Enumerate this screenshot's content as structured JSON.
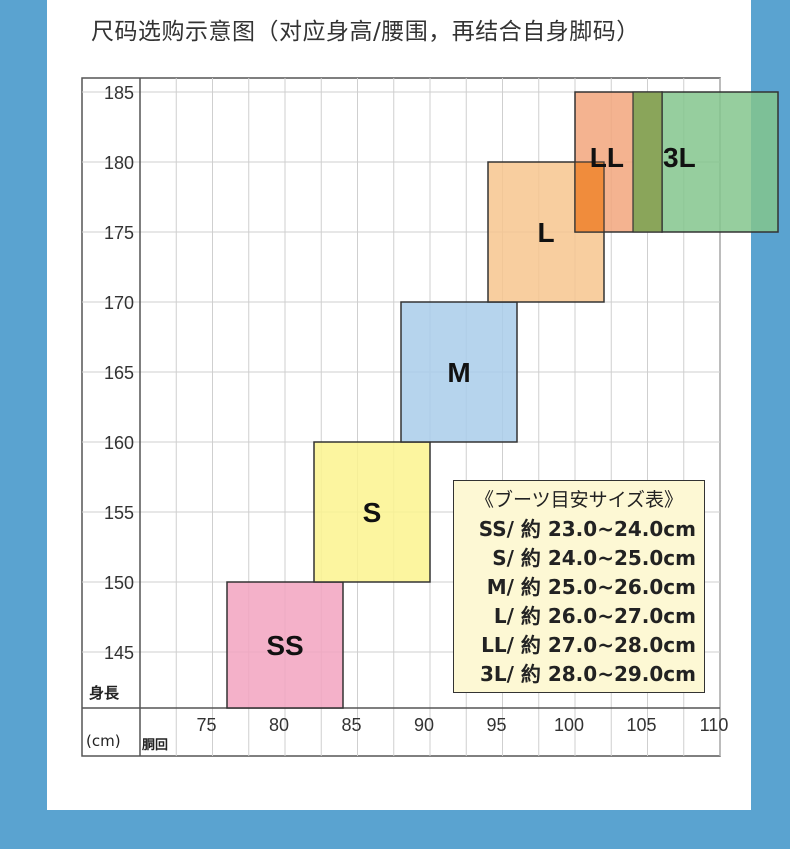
{
  "page": {
    "title": "尺码选购示意图（对应身高/腰围，再结合自身脚码）",
    "colors": {
      "background": "#5aa3d0",
      "card": "#ffffff",
      "grid": "#c9c9c9"
    }
  },
  "chart_data": {
    "type": "heatmap",
    "xlabel": "胴回",
    "ylabel": "身長",
    "unit": "(cm)",
    "xlim": [
      70,
      110
    ],
    "ylim": [
      141,
      186
    ],
    "x_ticks": [
      75,
      80,
      85,
      90,
      95,
      100,
      105,
      110
    ],
    "y_ticks": [
      145,
      150,
      155,
      160,
      165,
      170,
      175,
      180,
      185
    ],
    "grid": true,
    "regions": [
      {
        "label": "SS",
        "waist": [
          76,
          84
        ],
        "height": [
          141,
          150
        ],
        "color": "#f2a3bf"
      },
      {
        "label": "S",
        "waist": [
          82,
          90
        ],
        "height": [
          150,
          160
        ],
        "color": "#fbf38e"
      },
      {
        "label": "M",
        "waist": [
          88,
          96
        ],
        "height": [
          160,
          170
        ],
        "color": "#a9cdea"
      },
      {
        "label": "L",
        "waist": [
          94,
          102
        ],
        "height": [
          170,
          180
        ],
        "color": "#f7c68e"
      },
      {
        "label": "LL",
        "waist": [
          100,
          106
        ],
        "height": [
          175,
          185
        ],
        "color": "#f2a67c"
      },
      {
        "label": "3L",
        "waist": [
          106,
          114
        ],
        "height": [
          175,
          185
        ],
        "color": "#84c58d"
      }
    ]
  },
  "boot_table": {
    "title": "《ブーツ目安サイズ表》",
    "rows": [
      "SS/ 約 23.0~24.0cm",
      "S/ 約 24.0~25.0cm",
      "M/ 約 25.0~26.0cm",
      "L/ 約 26.0~27.0cm",
      "LL/ 約 27.0~28.0cm",
      "3L/ 約 28.0~29.0cm"
    ]
  }
}
